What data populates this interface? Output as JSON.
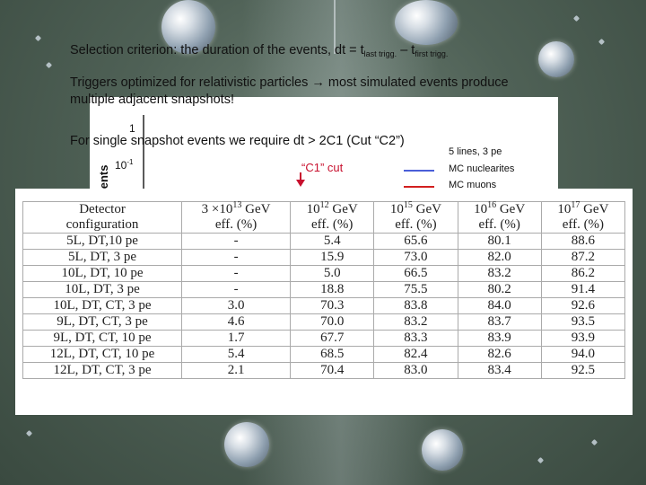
{
  "slide": {
    "line1": {
      "prefix": "Selection criterion:  the duration of the events, dt = t",
      "sub1": "last trigg.",
      "middle": " – t",
      "sub2": "first trigg."
    },
    "line2": "Triggers optimized for relativistic particles → most simulated events produce",
    "line3": "multiple adjacent snapshots!",
    "line4": "For single snapshot events we require dt > 2C1 (Cut “C2”)"
  },
  "plot": {
    "ylabel": "zed events",
    "tick_top": "1",
    "tick_mid_base": "10",
    "tick_mid_exp": "-1",
    "cut_label": "“C1” cut",
    "legend": [
      {
        "label": "5 lines, 3 pe",
        "color": ""
      },
      {
        "label": "MC nuclearites",
        "color": "#4a5fd8"
      },
      {
        "label": "MC muons",
        "color": "#d21f1f"
      }
    ]
  },
  "table": {
    "header": [
      {
        "main": "Detector",
        "sub": "configuration"
      },
      {
        "main": "3 ×10",
        "exp": "13",
        "unit": " GeV",
        "sub": "eff. (%)"
      },
      {
        "main": "10",
        "exp": "12",
        "unit": " GeV",
        "sub": "eff. (%)"
      },
      {
        "main": "10",
        "exp": "15",
        "unit": " GeV",
        "sub": "eff. (%)"
      },
      {
        "main": "10",
        "exp": "16",
        "unit": " GeV",
        "sub": "eff. (%)"
      },
      {
        "main": "10",
        "exp": "17",
        "unit": " GeV",
        "sub": "eff. (%)"
      }
    ],
    "rows": [
      [
        "5L, DT,10 pe",
        "-",
        "5.4",
        "65.6",
        "80.1",
        "88.6"
      ],
      [
        "5L, DT, 3 pe",
        "-",
        "15.9",
        "73.0",
        "82.0",
        "87.2"
      ],
      [
        "10L, DT, 10 pe",
        "-",
        "5.0",
        "66.5",
        "83.2",
        "86.2"
      ],
      [
        "10L, DT, 3 pe",
        "-",
        "18.8",
        "75.5",
        "80.2",
        "91.4"
      ],
      [
        "10L, DT, CT, 3 pe",
        "3.0",
        "70.3",
        "83.8",
        "84.0",
        "92.6"
      ],
      [
        "9L, DT, CT, 3 pe",
        "4.6",
        "70.0",
        "83.2",
        "83.7",
        "93.5"
      ],
      [
        "9L, DT, CT, 10 pe",
        "1.7",
        "67.7",
        "83.3",
        "83.9",
        "93.9"
      ],
      [
        "12L, DT, CT, 10 pe",
        "5.4",
        "68.5",
        "82.4",
        "82.6",
        "94.0"
      ],
      [
        "12L, DT, CT, 3 pe",
        "2.1",
        "70.4",
        "83.0",
        "83.4",
        "92.5"
      ]
    ]
  }
}
